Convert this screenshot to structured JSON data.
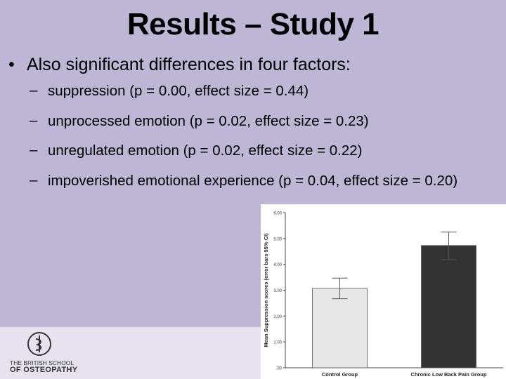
{
  "slide": {
    "title": "Results – Study 1",
    "main_bullet": "Also significant differences in four factors:",
    "bullet_symbol": "•",
    "dash_symbol": "–",
    "sub_bullets": [
      "suppression (p = 0.00, effect size = 0.44)",
      "unprocessed emotion (p = 0.02, effect size = 0.23)",
      "unregulated emotion (p = 0.02, effect size = 0.22)",
      "impoverished emotional experience (p = 0.04, effect size = 0.20)"
    ]
  },
  "logo": {
    "line1": "THE BRITISH SCHOOL",
    "line2": "OF OSTEOPATHY",
    "icon": "osteopathy-emblem-icon"
  },
  "colors": {
    "background": "#bdb6d5",
    "footer": "#e6e3ef",
    "bar_control": "#e6e6e6",
    "bar_pain": "#333333"
  },
  "chart_data": {
    "type": "bar",
    "categories": [
      "Control Group",
      "Chronic Low Back Pain Group"
    ],
    "values": [
      3.07,
      4.73
    ],
    "error_low": [
      2.67,
      4.18
    ],
    "error_high": [
      3.47,
      5.25
    ],
    "ylabel": "Mean Suppression scores (error bars 95% CI)",
    "xlabel": "",
    "ylim": [
      0,
      6
    ],
    "ticks": [
      ".00",
      "1.00",
      "2.00",
      "3.00",
      "4.00",
      "5.00",
      "6.00"
    ]
  }
}
